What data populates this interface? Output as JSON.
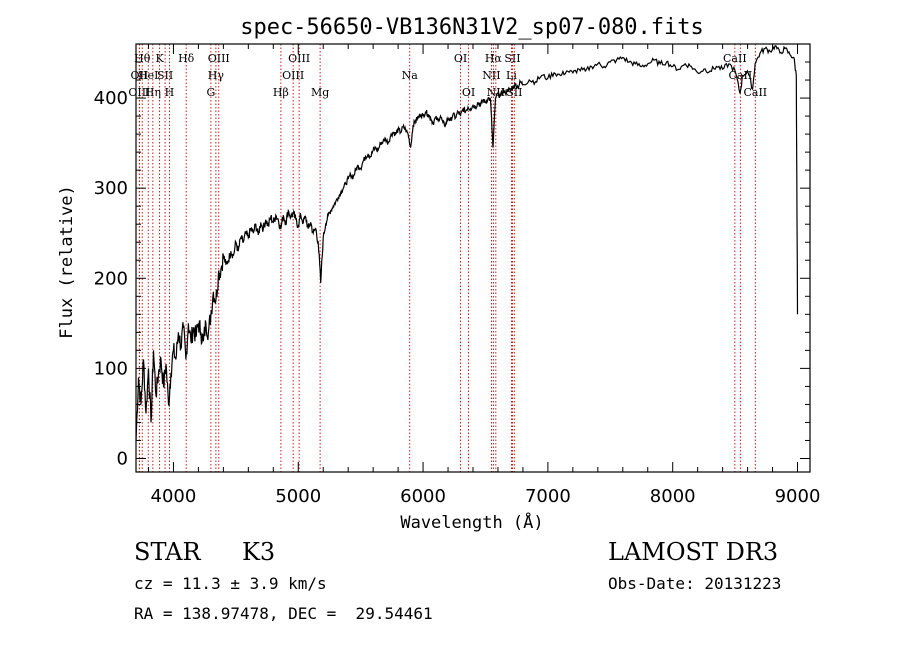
{
  "chart_data": {
    "type": "line",
    "title": "spec-56650-VB136N31V2_sp07-080.fits",
    "xlabel": "Wavelength (Å)",
    "ylabel": "Flux (relative)",
    "xlim": [
      3700,
      9100
    ],
    "ylim": [
      -15,
      460
    ],
    "xticks": [
      4000,
      5000,
      6000,
      7000,
      8000,
      9000
    ],
    "yticks": [
      0,
      100,
      200,
      300,
      400
    ],
    "grid": false,
    "series": [
      {
        "points": [
          [
            3700,
            20
          ],
          [
            3720,
            90
          ],
          [
            3740,
            60
          ],
          [
            3760,
            110
          ],
          [
            3780,
            50
          ],
          [
            3800,
            100
          ],
          [
            3820,
            40
          ],
          [
            3840,
            120
          ],
          [
            3860,
            70
          ],
          [
            3880,
            95
          ],
          [
            3900,
            110
          ],
          [
            3920,
            80
          ],
          [
            3940,
            105
          ],
          [
            3960,
            60
          ],
          [
            3980,
            95
          ],
          [
            4000,
            120
          ],
          [
            4020,
            110
          ],
          [
            4040,
            140
          ],
          [
            4060,
            125
          ],
          [
            4080,
            145
          ],
          [
            4100,
            110
          ],
          [
            4120,
            150
          ],
          [
            4140,
            130
          ],
          [
            4160,
            145
          ],
          [
            4180,
            135
          ],
          [
            4200,
            150
          ],
          [
            4220,
            140
          ],
          [
            4240,
            130
          ],
          [
            4260,
            150
          ],
          [
            4280,
            140
          ],
          [
            4300,
            160
          ],
          [
            4320,
            185
          ],
          [
            4340,
            175
          ],
          [
            4360,
            205
          ],
          [
            4380,
            210
          ],
          [
            4400,
            225
          ],
          [
            4420,
            215
          ],
          [
            4440,
            220
          ],
          [
            4460,
            230
          ],
          [
            4480,
            225
          ],
          [
            4500,
            240
          ],
          [
            4520,
            230
          ],
          [
            4540,
            245
          ],
          [
            4560,
            240
          ],
          [
            4580,
            250
          ],
          [
            4600,
            245
          ],
          [
            4620,
            255
          ],
          [
            4640,
            250
          ],
          [
            4660,
            260
          ],
          [
            4680,
            248
          ],
          [
            4700,
            262
          ],
          [
            4720,
            255
          ],
          [
            4740,
            265
          ],
          [
            4760,
            258
          ],
          [
            4780,
            268
          ],
          [
            4800,
            262
          ],
          [
            4820,
            270
          ],
          [
            4840,
            265
          ],
          [
            4860,
            255
          ],
          [
            4880,
            270
          ],
          [
            4900,
            262
          ],
          [
            4920,
            275
          ],
          [
            4940,
            268
          ],
          [
            4960,
            272
          ],
          [
            4980,
            265
          ],
          [
            5000,
            258
          ],
          [
            5020,
            270
          ],
          [
            5040,
            262
          ],
          [
            5060,
            268
          ],
          [
            5080,
            255
          ],
          [
            5100,
            262
          ],
          [
            5120,
            250
          ],
          [
            5140,
            255
          ],
          [
            5160,
            240
          ],
          [
            5180,
            195
          ],
          [
            5200,
            245
          ],
          [
            5220,
            260
          ],
          [
            5240,
            270
          ],
          [
            5260,
            275
          ],
          [
            5280,
            280
          ],
          [
            5300,
            285
          ],
          [
            5320,
            290
          ],
          [
            5340,
            295
          ],
          [
            5360,
            300
          ],
          [
            5380,
            305
          ],
          [
            5400,
            310
          ],
          [
            5420,
            315
          ],
          [
            5440,
            312
          ],
          [
            5460,
            320
          ],
          [
            5480,
            325
          ],
          [
            5500,
            322
          ],
          [
            5520,
            330
          ],
          [
            5540,
            335
          ],
          [
            5560,
            338
          ],
          [
            5580,
            335
          ],
          [
            5600,
            342
          ],
          [
            5620,
            345
          ],
          [
            5640,
            342
          ],
          [
            5660,
            350
          ],
          [
            5680,
            352
          ],
          [
            5700,
            355
          ],
          [
            5720,
            350
          ],
          [
            5740,
            358
          ],
          [
            5760,
            362
          ],
          [
            5780,
            360
          ],
          [
            5800,
            365
          ],
          [
            5820,
            362
          ],
          [
            5840,
            368
          ],
          [
            5860,
            365
          ],
          [
            5880,
            360
          ],
          [
            5900,
            345
          ],
          [
            5920,
            370
          ],
          [
            5940,
            375
          ],
          [
            5960,
            378
          ],
          [
            5980,
            382
          ],
          [
            6000,
            380
          ],
          [
            6020,
            385
          ],
          [
            6040,
            382
          ],
          [
            6060,
            378
          ],
          [
            6080,
            372
          ],
          [
            6100,
            378
          ],
          [
            6120,
            375
          ],
          [
            6140,
            380
          ],
          [
            6160,
            372
          ],
          [
            6180,
            370
          ],
          [
            6200,
            378
          ],
          [
            6220,
            375
          ],
          [
            6240,
            382
          ],
          [
            6260,
            378
          ],
          [
            6280,
            385
          ],
          [
            6300,
            380
          ],
          [
            6320,
            388
          ],
          [
            6340,
            385
          ],
          [
            6360,
            390
          ],
          [
            6380,
            388
          ],
          [
            6400,
            392
          ],
          [
            6420,
            390
          ],
          [
            6440,
            395
          ],
          [
            6460,
            392
          ],
          [
            6480,
            398
          ],
          [
            6500,
            395
          ],
          [
            6520,
            400
          ],
          [
            6540,
            398
          ],
          [
            6560,
            345
          ],
          [
            6580,
            400
          ],
          [
            6600,
            405
          ],
          [
            6620,
            402
          ],
          [
            6640,
            408
          ],
          [
            6660,
            405
          ],
          [
            6680,
            410
          ],
          [
            6700,
            408
          ],
          [
            6720,
            412
          ],
          [
            6740,
            415
          ],
          [
            6760,
            412
          ],
          [
            6780,
            418
          ],
          [
            6800,
            415
          ],
          [
            6850,
            420
          ],
          [
            6900,
            418
          ],
          [
            6950,
            425
          ],
          [
            7000,
            422
          ],
          [
            7050,
            428
          ],
          [
            7100,
            425
          ],
          [
            7150,
            430
          ],
          [
            7200,
            428
          ],
          [
            7250,
            432
          ],
          [
            7300,
            430
          ],
          [
            7350,
            435
          ],
          [
            7400,
            438
          ],
          [
            7450,
            435
          ],
          [
            7500,
            440
          ],
          [
            7550,
            442
          ],
          [
            7600,
            445
          ],
          [
            7650,
            440
          ],
          [
            7700,
            438
          ],
          [
            7750,
            435
          ],
          [
            7800,
            438
          ],
          [
            7850,
            442
          ],
          [
            7900,
            438
          ],
          [
            7950,
            440
          ],
          [
            8000,
            435
          ],
          [
            8050,
            432
          ],
          [
            8100,
            438
          ],
          [
            8150,
            435
          ],
          [
            8200,
            428
          ],
          [
            8250,
            432
          ],
          [
            8300,
            430
          ],
          [
            8350,
            435
          ],
          [
            8400,
            432
          ],
          [
            8450,
            438
          ],
          [
            8500,
            430
          ],
          [
            8540,
            405
          ],
          [
            8560,
            425
          ],
          [
            8600,
            430
          ],
          [
            8640,
            410
          ],
          [
            8660,
            438
          ],
          [
            8700,
            450
          ],
          [
            8740,
            455
          ],
          [
            8780,
            452
          ],
          [
            8820,
            458
          ],
          [
            8860,
            450
          ],
          [
            8900,
            455
          ],
          [
            8940,
            448
          ],
          [
            8970,
            445
          ],
          [
            8990,
            425
          ],
          [
            9000,
            160
          ]
        ]
      }
    ],
    "lines": [
      {
        "x": 3750,
        "label": "Hθ",
        "row": 1
      },
      {
        "x": 3727,
        "label": "OII",
        "row": 2
      },
      {
        "x": 3727,
        "label": "OIII",
        "row": 3
      },
      {
        "x": 3798,
        "label": "HeI",
        "row": 2
      },
      {
        "x": 3835,
        "label": "Hη",
        "row": 3
      },
      {
        "x": 3889,
        "label": "K",
        "row": 1
      },
      {
        "x": 3933,
        "label": "SII",
        "row": 2
      },
      {
        "x": 3968,
        "label": "H",
        "row": 3
      },
      {
        "x": 4102,
        "label": "Hδ",
        "row": 1
      },
      {
        "x": 4300,
        "label": "G",
        "row": 3
      },
      {
        "x": 4340,
        "label": "Hγ",
        "row": 2
      },
      {
        "x": 4363,
        "label": "OIII",
        "row": 1
      },
      {
        "x": 4861,
        "label": "Hβ",
        "row": 3
      },
      {
        "x": 4959,
        "label": "OIII",
        "row": 2
      },
      {
        "x": 5007,
        "label": "OIII",
        "row": 1
      },
      {
        "x": 5175,
        "label": "Mg",
        "row": 3
      },
      {
        "x": 5893,
        "label": "Na",
        "row": 2
      },
      {
        "x": 6300,
        "label": "OI",
        "row": 1
      },
      {
        "x": 6364,
        "label": "OI",
        "row": 3
      },
      {
        "x": 6548,
        "label": "NII",
        "row": 2
      },
      {
        "x": 6563,
        "label": "Hα",
        "row": 1
      },
      {
        "x": 6583,
        "label": "NII",
        "row": 3
      },
      {
        "x": 6708,
        "label": "Li",
        "row": 2
      },
      {
        "x": 6716,
        "label": "SII",
        "row": 1
      },
      {
        "x": 6731,
        "label": "SII",
        "row": 3
      },
      {
        "x": 8498,
        "label": "CaII",
        "row": 1
      },
      {
        "x": 8542,
        "label": "CaII",
        "row": 2
      },
      {
        "x": 8662,
        "label": "CaII",
        "row": 3
      }
    ]
  },
  "info": {
    "class": "STAR",
    "subclass": "K3",
    "survey": "LAMOST DR3",
    "cz": "cz = 11.3 ± 3.9 km/s",
    "obs_date": "Obs-Date: 20131223",
    "coords": "RA = 138.97478, DEC =  29.54461"
  },
  "colors": {
    "line_marker": "#cc0000",
    "spectrum": "#000000"
  }
}
